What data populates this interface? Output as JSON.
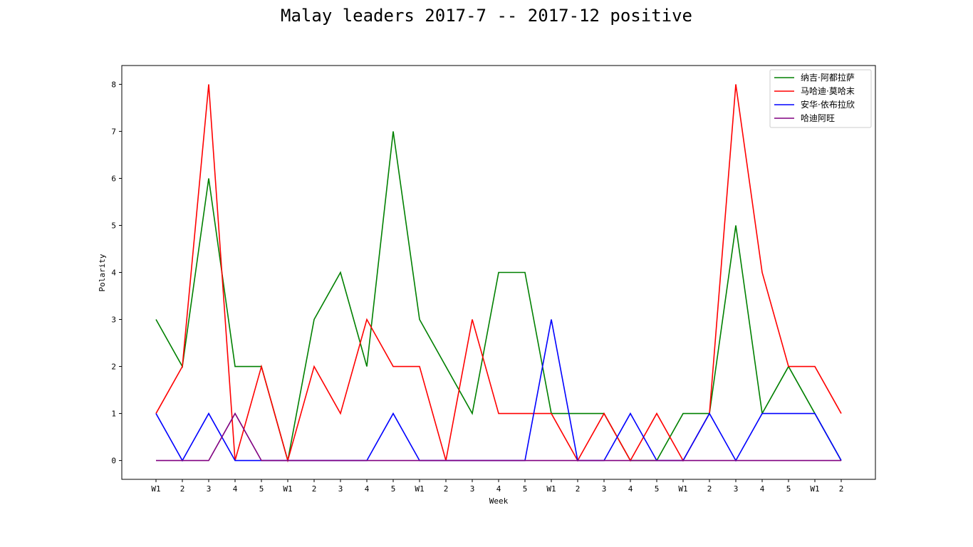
{
  "chart_data": {
    "type": "line",
    "title": "Malay leaders 2017-7 -- 2017-12 positive",
    "xlabel": "Week",
    "ylabel": "Polarity",
    "categories": [
      "W1",
      "2",
      "3",
      "4",
      "5",
      "W1",
      "2",
      "3",
      "4",
      "5",
      "W1",
      "2",
      "3",
      "4",
      "5",
      "W1",
      "2",
      "3",
      "4",
      "5",
      "W1",
      "2",
      "3",
      "4",
      "5",
      "W1",
      "2"
    ],
    "ylim": [
      -0.4,
      8.4
    ],
    "yticks": [
      0,
      1,
      2,
      3,
      4,
      5,
      6,
      7,
      8
    ],
    "grid": false,
    "legend_position": "top-right",
    "series": [
      {
        "name": "纳吉·阿都拉萨",
        "color": "#008000",
        "values": [
          3,
          2,
          6,
          2,
          2,
          0,
          3,
          4,
          2,
          7,
          3,
          2,
          1,
          4,
          4,
          1,
          1,
          1,
          0,
          0,
          1,
          1,
          5,
          1,
          2,
          1,
          0
        ]
      },
      {
        "name": "马哈迪·莫哈末",
        "color": "#ff0000",
        "values": [
          1,
          2,
          8,
          0,
          2,
          0,
          2,
          1,
          3,
          2,
          2,
          0,
          3,
          1,
          1,
          1,
          0,
          1,
          0,
          1,
          0,
          1,
          8,
          4,
          2,
          2,
          1
        ]
      },
      {
        "name": "安华·依布拉欣",
        "color": "#0000ff",
        "values": [
          1,
          0,
          1,
          0,
          0,
          0,
          0,
          0,
          0,
          1,
          0,
          0,
          0,
          0,
          0,
          3,
          0,
          0,
          1,
          0,
          0,
          1,
          0,
          1,
          1,
          1,
          0
        ]
      },
      {
        "name": "哈迪阿旺",
        "color": "#800080",
        "values": [
          0,
          0,
          0,
          1,
          0,
          0,
          0,
          0,
          0,
          0,
          0,
          0,
          0,
          0,
          0,
          0,
          0,
          0,
          0,
          0,
          0,
          0,
          0,
          0,
          0,
          0,
          0
        ]
      }
    ]
  }
}
